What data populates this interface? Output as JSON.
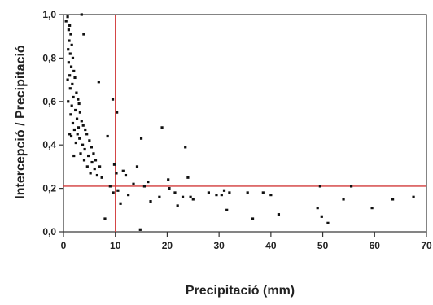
{
  "chart_data": {
    "type": "scatter",
    "xlabel": "Precipitació (mm)",
    "ylabel": "Intercepció / Precipitació",
    "xlim": [
      0,
      70
    ],
    "ylim": [
      0,
      1
    ],
    "x_ticks": [
      "0",
      "10",
      "20",
      "30",
      "40",
      "50",
      "60",
      "70"
    ],
    "y_ticks": [
      "0,0",
      "0,2",
      "0,4",
      "0,6",
      "0,8",
      "1,0"
    ],
    "grid": false,
    "reference_lines": [
      {
        "axis": "x",
        "value": 10,
        "color": "#d23a3a"
      },
      {
        "axis": "y",
        "value": 0.21,
        "color": "#d23a3a"
      }
    ],
    "marker_color": "#111111",
    "points": [
      [
        0.5,
        0.97
      ],
      [
        0.8,
        0.99
      ],
      [
        1.0,
        0.93
      ],
      [
        1.2,
        0.95
      ],
      [
        1.4,
        0.91
      ],
      [
        1.1,
        0.88
      ],
      [
        0.9,
        0.84
      ],
      [
        1.3,
        0.82
      ],
      [
        1.6,
        0.86
      ],
      [
        1.8,
        0.8
      ],
      [
        1.0,
        0.78
      ],
      [
        1.5,
        0.76
      ],
      [
        2.0,
        0.74
      ],
      [
        1.2,
        0.72
      ],
      [
        0.8,
        0.7
      ],
      [
        1.7,
        0.68
      ],
      [
        2.2,
        0.71
      ],
      [
        1.3,
        0.66
      ],
      [
        2.5,
        0.64
      ],
      [
        1.9,
        0.62
      ],
      [
        0.9,
        0.6
      ],
      [
        2.8,
        0.61
      ],
      [
        1.6,
        0.58
      ],
      [
        2.3,
        0.56
      ],
      [
        3.0,
        0.59
      ],
      [
        1.4,
        0.54
      ],
      [
        2.6,
        0.52
      ],
      [
        3.2,
        0.55
      ],
      [
        1.8,
        0.5
      ],
      [
        2.9,
        0.48
      ],
      [
        3.5,
        0.51
      ],
      [
        2.1,
        0.47
      ],
      [
        3.8,
        0.49
      ],
      [
        2.7,
        0.45
      ],
      [
        4.2,
        0.47
      ],
      [
        3.1,
        0.43
      ],
      [
        1.5,
        0.44
      ],
      [
        4.5,
        0.45
      ],
      [
        2.4,
        0.41
      ],
      [
        3.7,
        0.4
      ],
      [
        5.0,
        0.42
      ],
      [
        4.1,
        0.38
      ],
      [
        5.4,
        0.39
      ],
      [
        3.3,
        0.36
      ],
      [
        4.8,
        0.35
      ],
      [
        5.8,
        0.36
      ],
      [
        4.0,
        0.33
      ],
      [
        5.5,
        0.32
      ],
      [
        6.2,
        0.33
      ],
      [
        4.6,
        0.3
      ],
      [
        6.0,
        0.29
      ],
      [
        7.0,
        0.3
      ],
      [
        5.2,
        0.27
      ],
      [
        6.5,
        0.26
      ],
      [
        7.4,
        0.25
      ],
      [
        3.9,
        0.91
      ],
      [
        3.5,
        1.0
      ],
      [
        2.0,
        0.35
      ],
      [
        1.2,
        0.45
      ],
      [
        6.8,
        0.69
      ],
      [
        9.5,
        0.61
      ],
      [
        10.3,
        0.55
      ],
      [
        8.5,
        0.44
      ],
      [
        9.8,
        0.31
      ],
      [
        10.2,
        0.27
      ],
      [
        11.5,
        0.28
      ],
      [
        12.0,
        0.26
      ],
      [
        13.5,
        0.22
      ],
      [
        14.2,
        0.3
      ],
      [
        15.0,
        0.43
      ],
      [
        15.6,
        0.21
      ],
      [
        16.3,
        0.23
      ],
      [
        12.5,
        0.17
      ],
      [
        11.0,
        0.13
      ],
      [
        10.5,
        0.19
      ],
      [
        9.0,
        0.21
      ],
      [
        8.0,
        0.06
      ],
      [
        9.6,
        0.18
      ],
      [
        14.8,
        0.01
      ],
      [
        16.8,
        0.14
      ],
      [
        18.5,
        0.16
      ],
      [
        19.0,
        0.48
      ],
      [
        20.2,
        0.24
      ],
      [
        20.4,
        0.2
      ],
      [
        21.5,
        0.18
      ],
      [
        22.0,
        0.12
      ],
      [
        23.0,
        0.16
      ],
      [
        23.5,
        0.39
      ],
      [
        24.0,
        0.25
      ],
      [
        24.5,
        0.16
      ],
      [
        25.0,
        0.15
      ],
      [
        28.0,
        0.18
      ],
      [
        29.5,
        0.17
      ],
      [
        30.5,
        0.17
      ],
      [
        31.0,
        0.19
      ],
      [
        32.0,
        0.18
      ],
      [
        31.5,
        0.1
      ],
      [
        35.5,
        0.18
      ],
      [
        36.5,
        0.06
      ],
      [
        38.5,
        0.18
      ],
      [
        40.0,
        0.17
      ],
      [
        41.5,
        0.08
      ],
      [
        49.0,
        0.11
      ],
      [
        49.5,
        0.21
      ],
      [
        49.8,
        0.07
      ],
      [
        51.0,
        0.04
      ],
      [
        54.0,
        0.15
      ],
      [
        55.5,
        0.21
      ],
      [
        59.5,
        0.11
      ],
      [
        63.5,
        0.15
      ],
      [
        67.5,
        0.16
      ]
    ]
  }
}
